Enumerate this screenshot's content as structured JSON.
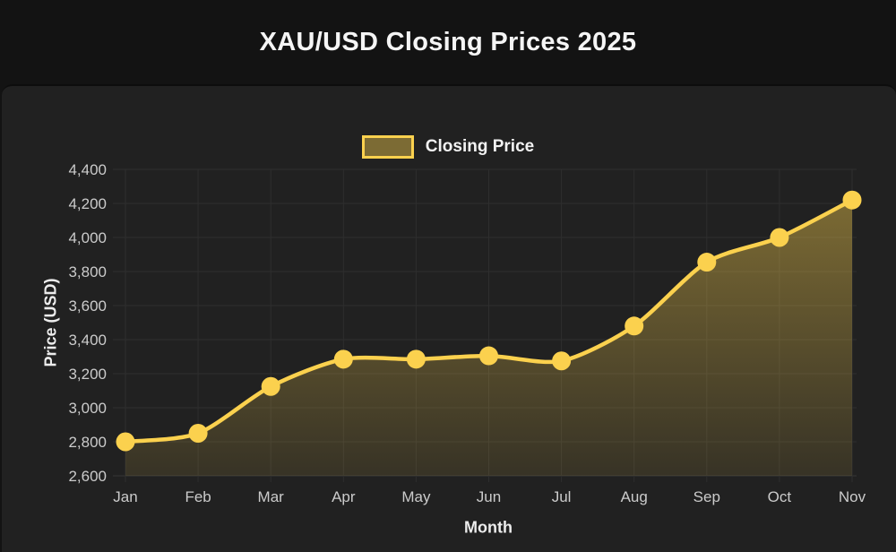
{
  "title": "XAU/USD Closing Prices 2025",
  "legend": {
    "label": "Closing Price"
  },
  "colors": {
    "page_bg": "#131313",
    "card_bg": "#212121",
    "title_text": "#f5f5f5",
    "tick_text": "#cbcbcb",
    "axis_title_text": "#ececec",
    "grid": "#2e2e2e",
    "baseline": "#383838",
    "line": "#fbd14e",
    "point": "#fbd14e",
    "area_top": "rgba(251,209,78,0.45)",
    "area_bottom": "rgba(251,209,78,0.10)",
    "legend_fill": "rgba(251,209,78,0.42)"
  },
  "chart_data": {
    "type": "line",
    "title": "XAU/USD Closing Prices 2025",
    "categories": [
      "Jan",
      "Feb",
      "Mar",
      "Apr",
      "May",
      "Jun",
      "Jul",
      "Aug",
      "Sep",
      "Oct",
      "Nov"
    ],
    "series": [
      {
        "name": "Closing Price",
        "values": [
          2800,
          2850,
          3125,
          3285,
          3285,
          3305,
          3275,
          3480,
          3855,
          4000,
          4220
        ]
      }
    ],
    "xlabel": "Month",
    "ylabel": "Price (USD)",
    "ylim": [
      2600,
      4400
    ],
    "ytick_step": 200,
    "yticks": [
      "2,600",
      "2,800",
      "3,000",
      "3,200",
      "3,400",
      "3,600",
      "3,800",
      "4,000",
      "4,200",
      "4,400"
    ],
    "grid": true,
    "legend_position": "top",
    "area_fill": true,
    "smooth": true,
    "point_radius": 10.5,
    "line_width": 4.5
  }
}
